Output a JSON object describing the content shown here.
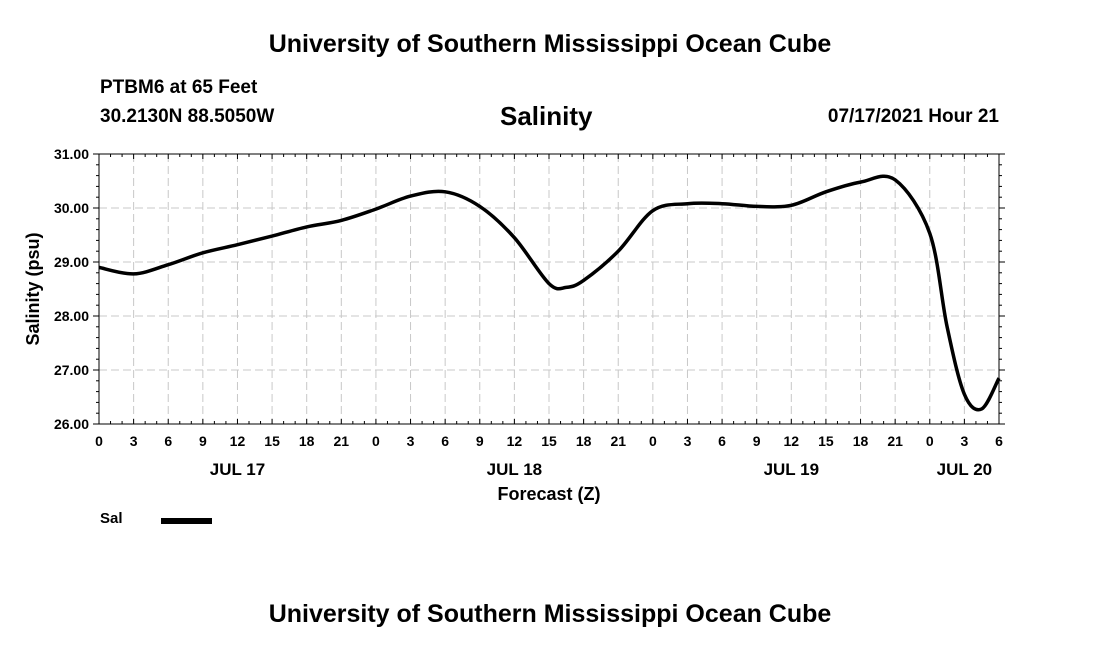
{
  "header": {
    "title": "University of Southern Mississippi Ocean Cube",
    "station": "PTBM6 at 65 Feet",
    "coords": "30.2130N  88.5050W",
    "parameter": "Salinity",
    "datetime": "07/17/2021 Hour 21"
  },
  "footer": {
    "title": "University of Southern Mississippi Ocean Cube"
  },
  "legend": {
    "label": "Sal"
  },
  "colors": {
    "line": "#000000",
    "grid": "#c8c8c8"
  },
  "chart_data": {
    "type": "line",
    "title": "Salinity",
    "xlabel": "Forecast (Z)",
    "ylabel": "Salinity (psu)",
    "ylim": [
      26.0,
      31.0
    ],
    "yticks": [
      "26.00",
      "27.00",
      "28.00",
      "29.00",
      "30.00",
      "31.00"
    ],
    "xlim_hours": [
      0,
      78
    ],
    "xtick_labels": [
      "0",
      "3",
      "6",
      "9",
      "12",
      "15",
      "18",
      "21",
      "0",
      "3",
      "6",
      "9",
      "12",
      "15",
      "18",
      "21",
      "0",
      "3",
      "6",
      "9",
      "12",
      "15",
      "18",
      "21",
      "0",
      "3",
      "6"
    ],
    "day_labels": [
      {
        "label": "JUL 17",
        "hour": 12
      },
      {
        "label": "JUL 18",
        "hour": 36
      },
      {
        "label": "JUL 19",
        "hour": 60
      },
      {
        "label": "JUL 20",
        "hour": 75
      }
    ],
    "grid": true,
    "series": [
      {
        "name": "Sal",
        "x_hours": [
          0,
          3,
          6,
          9,
          12,
          15,
          18,
          21,
          24,
          27,
          30,
          33,
          36,
          39,
          40.5,
          42,
          45,
          48,
          51,
          54,
          57,
          60,
          63,
          66,
          69,
          72,
          73.5,
          75,
          76.5,
          78
        ],
        "values": [
          28.9,
          28.78,
          28.95,
          29.17,
          29.32,
          29.48,
          29.65,
          29.77,
          29.98,
          30.22,
          30.3,
          30.03,
          29.45,
          28.6,
          28.53,
          28.66,
          29.2,
          29.95,
          30.08,
          30.08,
          30.03,
          30.05,
          30.3,
          30.48,
          30.52,
          29.53,
          27.8,
          26.55,
          26.28,
          26.85
        ]
      }
    ]
  }
}
